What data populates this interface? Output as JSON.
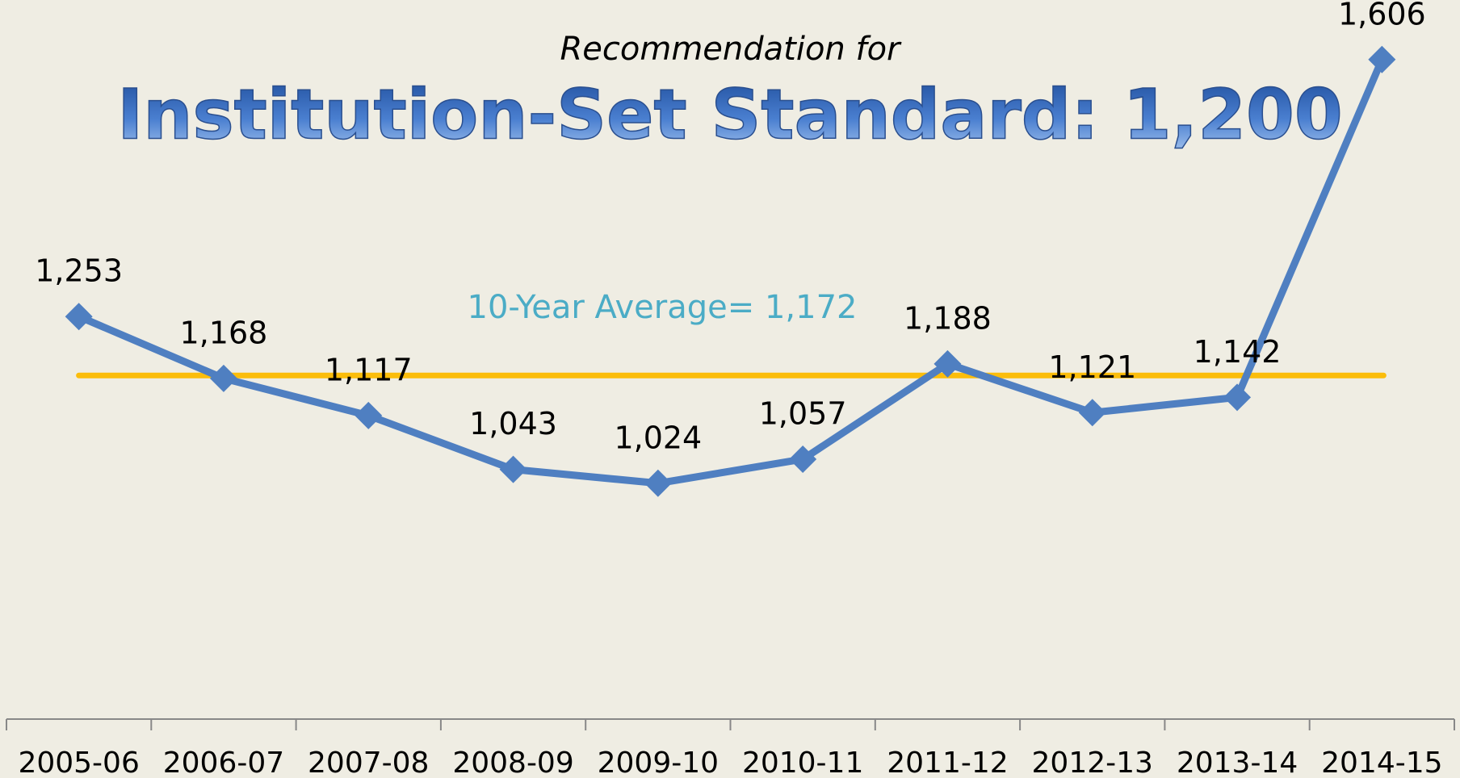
{
  "chart_data": {
    "type": "line",
    "subtitle": "Recommendation for",
    "title": "Institution-Set Standard: 1,200",
    "categories": [
      "2005-06",
      "2006-07",
      "2007-08",
      "2008-09",
      "2009-10",
      "2010-11",
      "2011-12",
      "2012-13",
      "2013-14",
      "2014-15"
    ],
    "series": [
      {
        "color": "#4f7fc1",
        "values": [
          1253,
          1168,
          1117,
          1043,
          1024,
          1057,
          1188,
          1121,
          1142,
          1606
        ],
        "value_labels": [
          "1,253",
          "1,168",
          "1,117",
          "1,043",
          "1,024",
          "1,057",
          "1,188",
          "1,121",
          "1,142",
          "1,606"
        ]
      }
    ],
    "average": {
      "value": 1172,
      "label": "10-Year Average= 1,172",
      "color": "#fbbd0b",
      "label_color": "#4bacc6"
    },
    "ylim": [
      700,
      1700
    ],
    "grid": false
  }
}
